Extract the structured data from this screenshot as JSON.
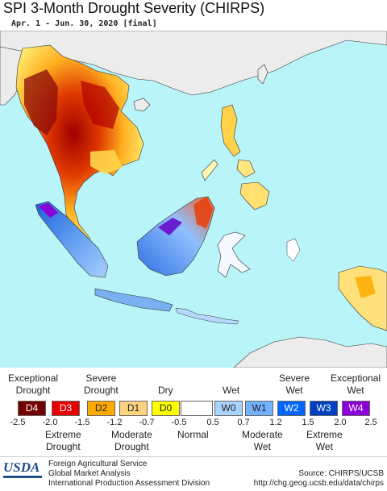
{
  "title": "SPI 3-Month Drought Severity (CHIRPS)",
  "subtitle": "Apr. 1 - Jun. 30, 2020 [final]",
  "legend": {
    "top_labels": [
      {
        "text": "Exceptional\nDrought"
      },
      {
        "text": "Severe\nDrought"
      },
      {
        "text": "Dry"
      },
      {
        "text": "Wet"
      },
      {
        "text": "Severe\nWet"
      },
      {
        "text": "Exceptional\nWet"
      }
    ],
    "bottom_labels": [
      {
        "text": "Extreme\nDrought"
      },
      {
        "text": "Moderate\nDrought"
      },
      {
        "text": "Normal"
      },
      {
        "text": "Moderate\nWet"
      },
      {
        "text": "Extreme\nWet"
      }
    ],
    "categories": [
      {
        "code": "D4",
        "color": "#730000",
        "text_color": "#ffffff"
      },
      {
        "code": "D3",
        "color": "#e60000",
        "text_color": "#ffffff"
      },
      {
        "code": "D2",
        "color": "#ffaa00",
        "text_color": "#222222"
      },
      {
        "code": "D1",
        "color": "#fcd37f",
        "text_color": "#222222"
      },
      {
        "code": "D0",
        "color": "#ffff00",
        "text_color": "#222222"
      },
      {
        "code": "",
        "color": "#ffffff",
        "text_color": "#222222"
      },
      {
        "code": "W0",
        "color": "#aad4ff",
        "text_color": "#222222"
      },
      {
        "code": "W1",
        "color": "#73b2ff",
        "text_color": "#222222"
      },
      {
        "code": "W2",
        "color": "#0066ff",
        "text_color": "#ffffff"
      },
      {
        "code": "W3",
        "color": "#0040c0",
        "text_color": "#ffffff"
      },
      {
        "code": "W4",
        "color": "#8b00d6",
        "text_color": "#ffffff"
      }
    ],
    "ticks": [
      "-2.5",
      "-2.0",
      "-1.5",
      "-1.2",
      "-0.7",
      "-0.5",
      "0.5",
      "0.7",
      "1.2",
      "1.5",
      "2.0",
      "2.5"
    ]
  },
  "footer": {
    "logo": "USDA",
    "agency_lines": [
      "Foreign Agricultural Service",
      "Global Market Analysis",
      "International Production Assessment Division"
    ],
    "source_lines": [
      "Source: CHIRPS/UCSB",
      "http://chg.geog.ucsb.edu/data/chirps"
    ]
  },
  "colors": {
    "ocean": "#b8f4f8",
    "land_outside": "#ececec",
    "border": "#333333"
  }
}
